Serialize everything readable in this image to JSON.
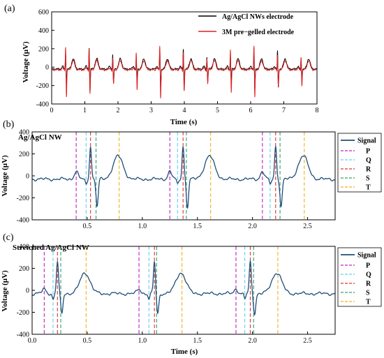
{
  "chart_data": [
    {
      "id": "a",
      "type": "line",
      "panel_label": "(a)",
      "xlabel": "Time (s)",
      "ylabel": "Voltage (μV)",
      "xlim": [
        0,
        8
      ],
      "ylim": [
        -400,
        600
      ],
      "xticks": [
        0,
        1,
        2,
        3,
        4,
        5,
        6,
        7,
        8
      ],
      "yticks": [
        -400,
        -200,
        0,
        200,
        400,
        600
      ],
      "legend_position": "top-right",
      "beats": [
        0.42,
        1.13,
        1.84,
        2.55,
        3.26,
        3.97,
        4.68,
        5.39,
        6.1,
        6.81,
        7.52
      ],
      "series": [
        {
          "name": "Ag/AgCl NWs electrode",
          "color": "#000000",
          "r_amp": 220,
          "s_amp": -220,
          "t_amp": 110,
          "p_amp": 30,
          "baseline": -20
        },
        {
          "name": "3M pre−gelled electrode",
          "color": "#e02020",
          "r_amp": 250,
          "s_amp": -280,
          "t_amp": 100,
          "p_amp": 20,
          "baseline": -30
        }
      ]
    },
    {
      "id": "b",
      "type": "line",
      "panel_label": "(b)",
      "title": "Ag/AgCl NW",
      "xlabel": "",
      "ylabel": "Voltage (μV)",
      "xlim": [
        0.0,
        2.75
      ],
      "ylim": [
        -400,
        400
      ],
      "xticks": [
        0.5,
        1.0,
        1.5,
        2.0,
        2.5
      ],
      "xticklabels": [
        "0.5",
        "1.0",
        "1.5",
        "2.0",
        "2.5"
      ],
      "yticks": [
        -400,
        -200,
        0,
        200,
        400
      ],
      "legend_position": "right",
      "series": [
        {
          "name": "Signal",
          "color": "#1f4e79"
        }
      ],
      "markers": {
        "P": {
          "color": "#c020c0",
          "x": [
            0.4,
            1.25,
            2.09
          ]
        },
        "Q": {
          "color": "#60d0f0",
          "x": [
            0.49,
            1.32,
            2.16
          ]
        },
        "R": {
          "color": "#e03030",
          "x": [
            0.53,
            1.37,
            2.21
          ]
        },
        "S": {
          "color": "#30a070",
          "x": [
            0.58,
            1.4,
            2.25
          ]
        },
        "T": {
          "color": "#f0b020",
          "x": [
            0.79,
            1.62,
            2.47
          ]
        }
      },
      "marker_order": [
        "P",
        "Q",
        "R",
        "S",
        "T"
      ],
      "waves": {
        "p_amp": 70,
        "r_amp": 300,
        "s_amp": -250,
        "t_amp": 210
      }
    },
    {
      "id": "c",
      "type": "line",
      "panel_label": "(c)",
      "title": "Stretched Ag/AgCl NW",
      "xlabel": "Time (s)",
      "ylabel": "Voltage (μV)",
      "xlim": [
        0.0,
        2.75
      ],
      "ylim": [
        -400,
        400
      ],
      "xticks": [
        0.0,
        0.5,
        1.0,
        1.5,
        2.0,
        2.5
      ],
      "xticklabels": [
        "0.0",
        "0.5",
        "1.0",
        "1.5",
        "2.0",
        "2.5"
      ],
      "yticks": [
        -400,
        -200,
        0,
        200,
        400
      ],
      "legend_position": "right",
      "series": [
        {
          "name": "Signal",
          "color": "#1f4e79"
        }
      ],
      "markers": {
        "P": {
          "color": "#c020c0",
          "x": [
            0.11,
            0.97,
            1.85
          ]
        },
        "Q": {
          "color": "#60d0f0",
          "x": [
            0.19,
            1.06,
            1.93
          ]
        },
        "R": {
          "color": "#e03030",
          "x": [
            0.23,
            1.11,
            1.98
          ]
        },
        "S": {
          "color": "#30a070",
          "x": [
            0.26,
            1.13,
            2.01
          ]
        },
        "T": {
          "color": "#f0b020",
          "x": [
            0.49,
            1.36,
            2.23
          ]
        }
      },
      "marker_order": [
        "P",
        "Q",
        "R",
        "S",
        "T"
      ],
      "waves": {
        "p_amp": 40,
        "r_amp": 290,
        "s_amp": -180,
        "t_amp": 190
      }
    }
  ]
}
